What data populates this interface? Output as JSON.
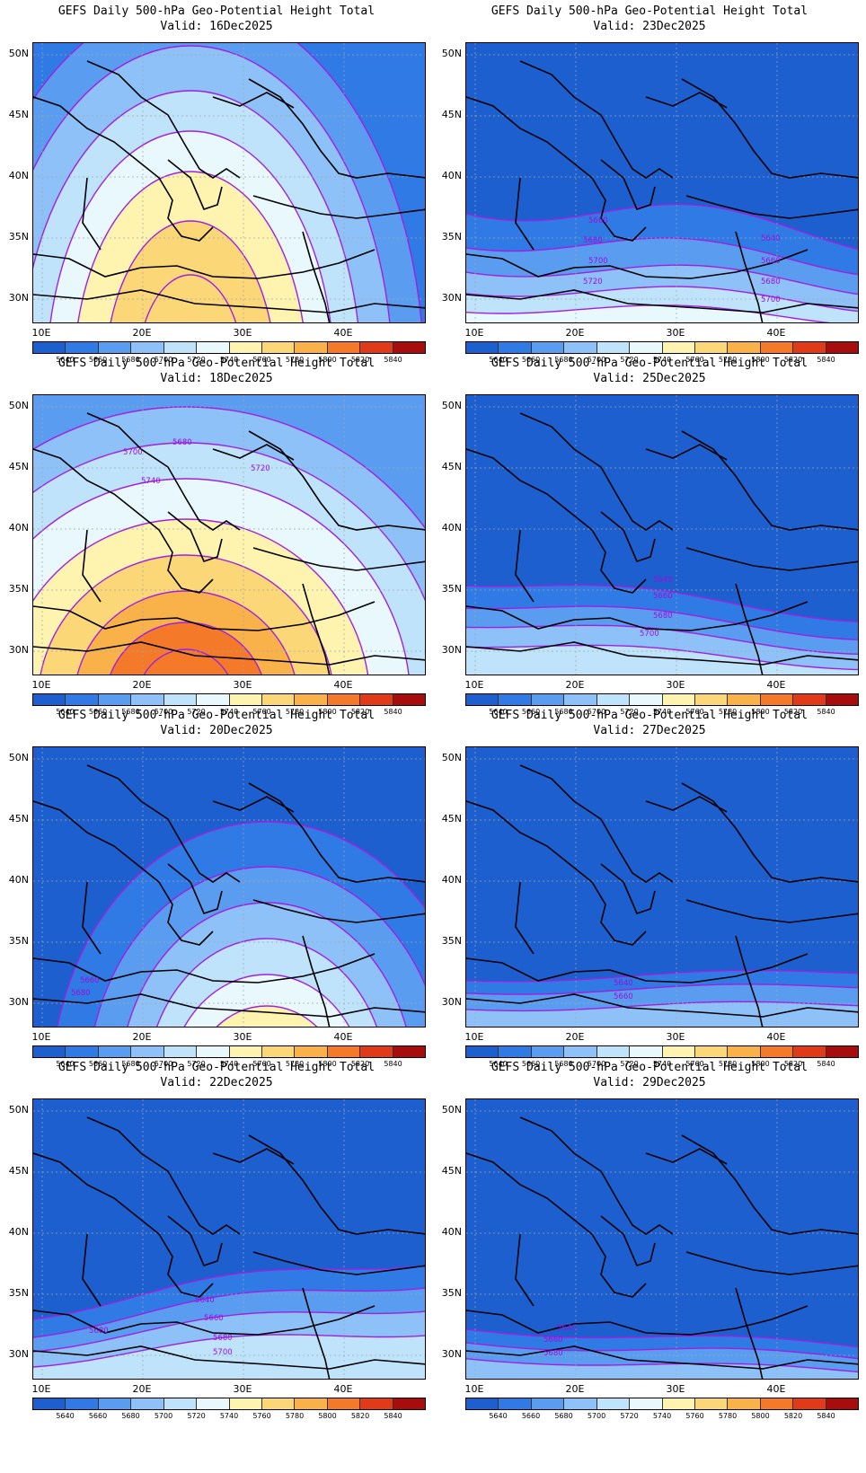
{
  "title_line1": "GEFS Daily 500-hPa Geo-Potential Height Total",
  "lat_labels": [
    "50N",
    "45N",
    "40N",
    "35N",
    "30N"
  ],
  "lon_labels": [
    "10E",
    "20E",
    "30E",
    "40E"
  ],
  "colorbar": {
    "levels": [
      "5640",
      "5660",
      "5680",
      "5700",
      "5720",
      "5740",
      "5760",
      "5780",
      "5800",
      "5820",
      "5840"
    ],
    "colors": [
      "#1e5fcf",
      "#2f7ae5",
      "#5a9cf0",
      "#8ec1f7",
      "#bfe3fb",
      "#e8f8fc",
      "#fff3b0",
      "#fcd778",
      "#f9b24a",
      "#f47a2a",
      "#e03a18",
      "#a80d0d"
    ]
  },
  "panels": [
    {
      "valid": "Valid: 16Dec2025",
      "contour_labels": []
    },
    {
      "valid": "Valid: 23Dec2025",
      "contour_labels": [
        "5660",
        "5680",
        "5700",
        "5720",
        "5640",
        "5660",
        "5680",
        "5700"
      ]
    },
    {
      "valid": "Valid: 18Dec2025",
      "contour_labels": [
        "5680",
        "5700",
        "5740",
        "5720"
      ]
    },
    {
      "valid": "Valid: 25Dec2025",
      "contour_labels": [
        "5640",
        "5660",
        "5680",
        "5700"
      ]
    },
    {
      "valid": "Valid: 20Dec2025",
      "contour_labels": [
        "5660",
        "5680"
      ]
    },
    {
      "valid": "Valid: 27Dec2025",
      "contour_labels": [
        "5640",
        "5660"
      ]
    },
    {
      "valid": "Valid: 22Dec2025",
      "contour_labels": [
        "5640",
        "5660",
        "5680",
        "5680",
        "5700"
      ]
    },
    {
      "valid": "Valid: 29Dec2025",
      "contour_labels": [
        "5640",
        "5660",
        "5680"
      ]
    }
  ]
}
